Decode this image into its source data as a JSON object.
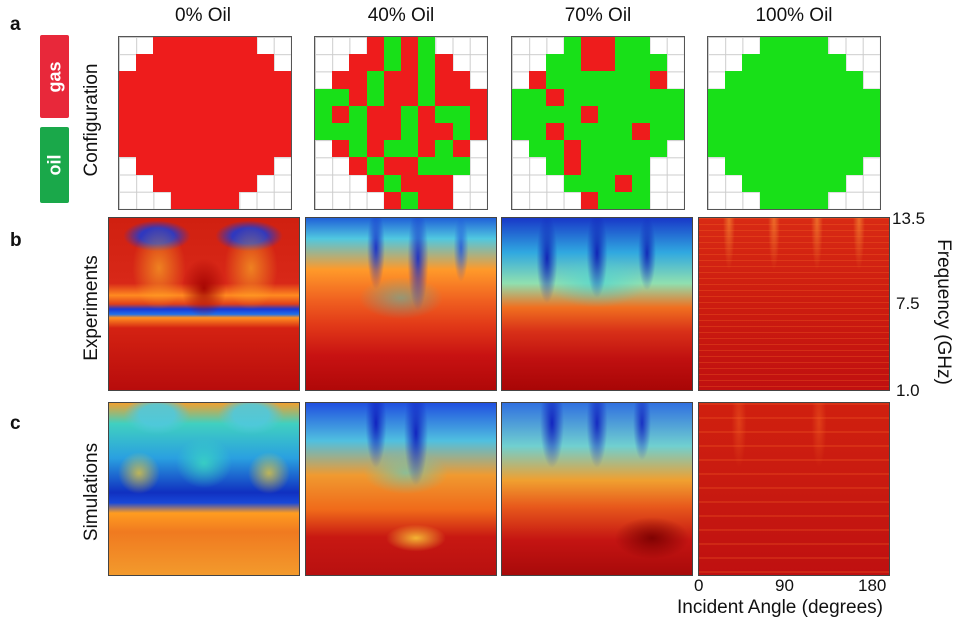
{
  "panels": {
    "a": "a",
    "b": "b",
    "c": "c"
  },
  "columns": [
    "0% Oil",
    "40% Oil",
    "70% Oil",
    "100% Oil"
  ],
  "legend": {
    "gas": "gas",
    "oil": "oil",
    "gas_color": "#ee1c1c",
    "oil_color": "#18e018",
    "gas_badge_color": "#e8283a",
    "oil_badge_color": "#1aa84a"
  },
  "row_labels": {
    "configuration": "Configuration",
    "experiments": "Experiments",
    "simulations": "Simulations"
  },
  "frequency_axis": {
    "label": "Frequency (GHz)",
    "ticks": [
      "13.5",
      "7.5",
      "1.0"
    ]
  },
  "angle_axis": {
    "label": "Incident Angle (degrees)",
    "ticks": [
      "0",
      "90",
      "180"
    ]
  },
  "configurations": [
    {
      "name": "0% Oil",
      "grid": [
        "..GGGGGG..",
        ".GGGGGGGG.",
        "GGGGGGGGGG",
        "GGGGGGGGGG",
        "GGGGGGGGGG",
        "GGGGGGGGGG",
        "GGGGGGGGGG",
        ".GGGGGGGG.",
        "..GGGGGG..",
        "...GGGG..."
      ]
    },
    {
      "name": "40% Oil",
      "grid": [
        "...GOGO...",
        "..GGOGOG..",
        ".GGOGGOGG.",
        "OOGOGGOGGG",
        "OGOGGOGOOG",
        "OOOGGOGGOG",
        ".GOGOOGOG.",
        "..GOGGOOO.",
        "...GOGGG..",
        "....GOGG.."
      ]
    },
    {
      "name": "70% Oil",
      "grid": [
        "...OGGOO..",
        "..OOGGOOO.",
        ".GOOOOOOG.",
        "OOGOOOOOOO",
        "OOOOGOOOOO",
        "OOGOOOOGOO",
        ".OOGOOOOO.",
        "..OGOOOO..",
        "...OOOGO..",
        "....GOOO.."
      ]
    },
    {
      "name": "100% Oil",
      "grid": [
        "...OOOO...",
        "..OOOOOO..",
        ".OOOOOOOO.",
        "OOOOOOOOOO",
        "OOOOOOOOOO",
        "OOOOOOOOOO",
        "OOOOOOOOOO",
        ".OOOOOOOO.",
        "..OOOOOO..",
        "...OOOO..."
      ]
    }
  ]
}
